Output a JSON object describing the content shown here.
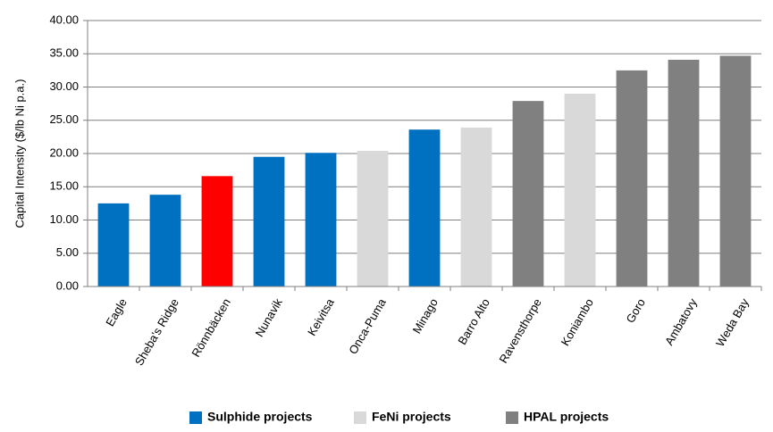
{
  "chart_data": {
    "type": "bar",
    "title": "",
    "xlabel": "",
    "ylabel": "Capital Intensity ($/lb Ni p.a.)",
    "ylim": [
      0,
      40
    ],
    "yticks": [
      "0.00",
      "5.00",
      "10.00",
      "15.00",
      "20.00",
      "25.00",
      "30.00",
      "35.00",
      "40.00"
    ],
    "grid": true,
    "legend_position": "bottom",
    "categories": [
      "Eagle",
      "Sheba's Ridge",
      "Rönnbäcken",
      "Nunavik",
      "Keivitsa",
      "Onca-Puma",
      "Minago",
      "Barro Alto",
      "Ravensthorpe",
      "Koniambo",
      "Goro",
      "Ambatovy",
      "Weda Bay"
    ],
    "values": [
      12.5,
      13.8,
      16.6,
      19.5,
      20.1,
      20.4,
      23.6,
      23.9,
      27.9,
      29.0,
      32.5,
      34.1,
      34.7
    ],
    "bar_groups": [
      "sulphide",
      "sulphide",
      "highlight",
      "sulphide",
      "sulphide",
      "feni",
      "sulphide",
      "feni",
      "hpal",
      "feni",
      "hpal",
      "hpal",
      "hpal"
    ],
    "colors": {
      "sulphide": "#0070C0",
      "feni": "#D9D9D9",
      "hpal": "#808080",
      "highlight": "#FF0000"
    },
    "legend": [
      {
        "key": "sulphide",
        "label": "Sulphide projects"
      },
      {
        "key": "feni",
        "label": "FeNi projects"
      },
      {
        "key": "hpal",
        "label": "HPAL projects"
      }
    ]
  }
}
